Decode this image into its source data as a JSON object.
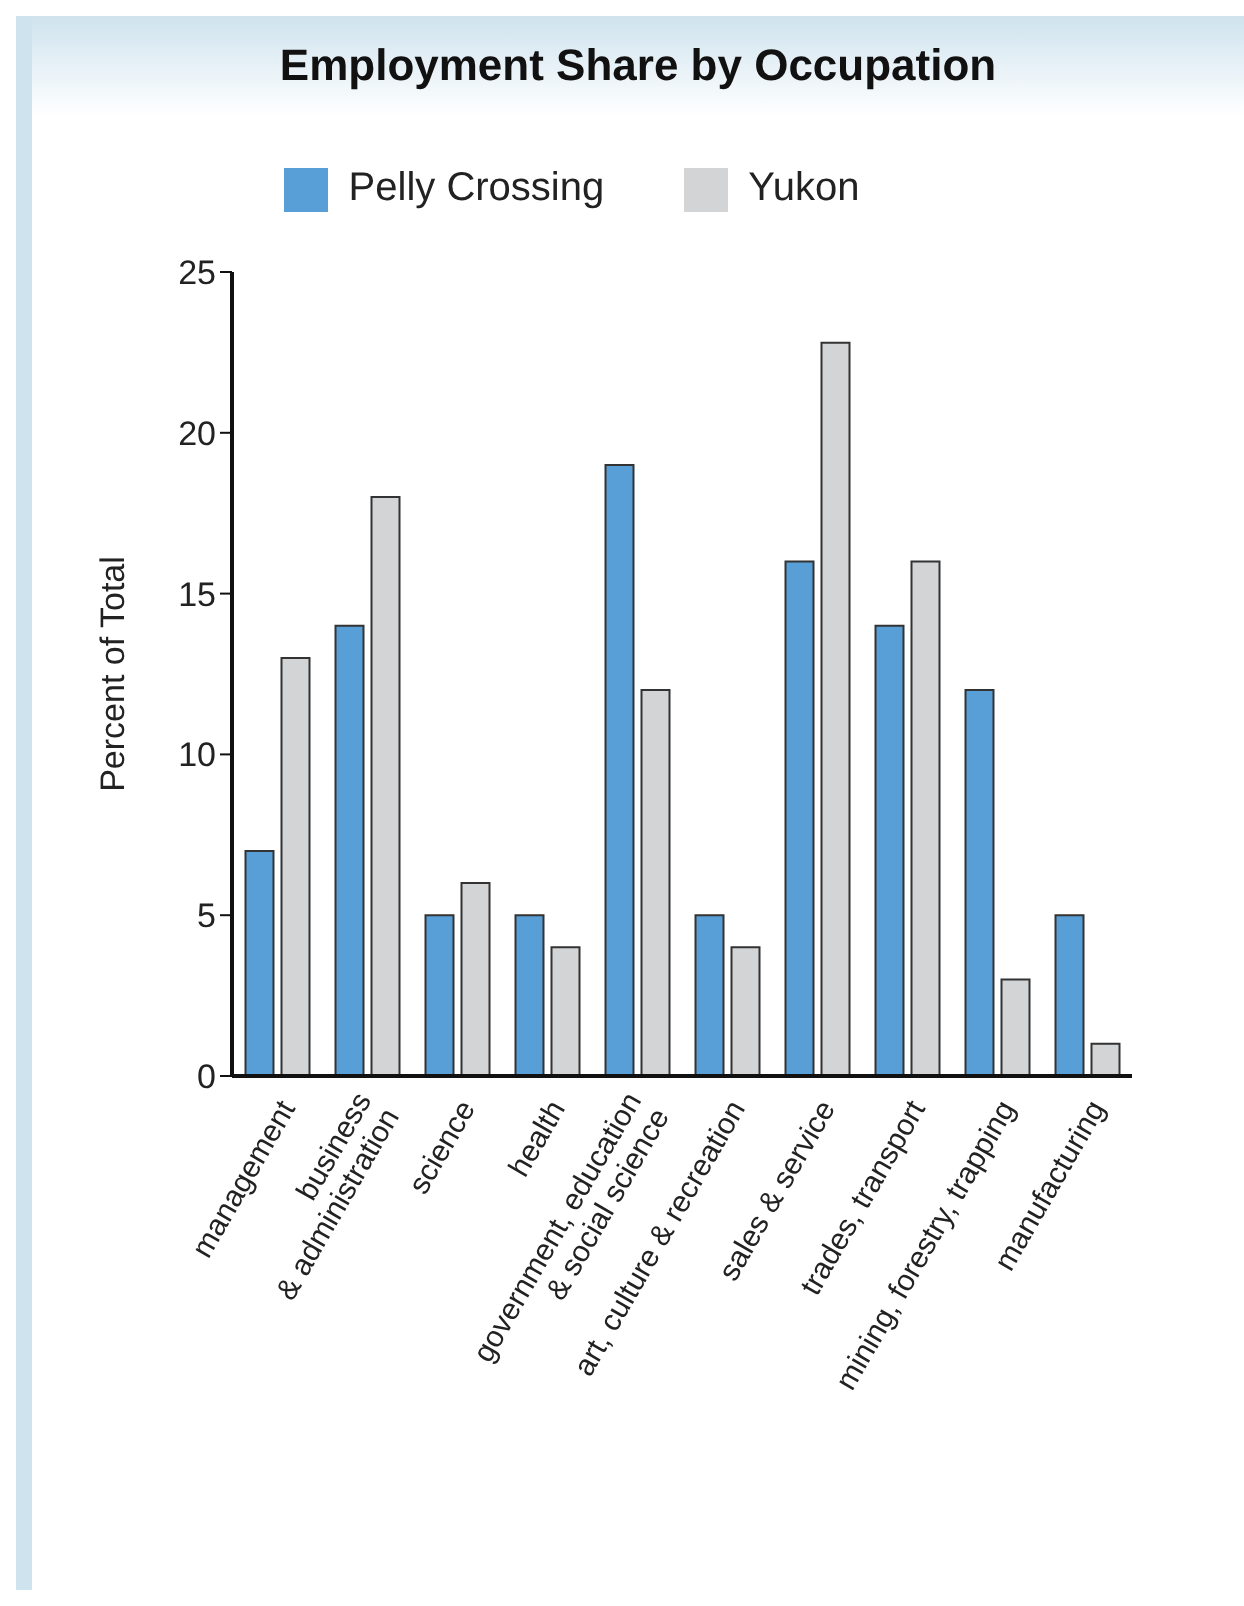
{
  "chart_data": {
    "type": "bar",
    "title": "Employment Share by Occupation",
    "ylabel": "Percent of Total",
    "categories": [
      "management",
      "business\n& administration",
      "science",
      "health",
      "government, education\n& social science",
      "art, culture & recreation",
      "sales & service",
      "trades, transport",
      "mining, forestry, trapping",
      "manufacturing"
    ],
    "series": [
      {
        "name": "Pelly Crossing",
        "color": "#579fd6",
        "values": [
          7,
          14,
          5,
          5,
          19,
          5,
          16,
          14,
          12,
          5
        ]
      },
      {
        "name": "Yukon",
        "color": "#d3d4d6",
        "values": [
          13,
          18,
          6,
          4,
          12,
          4,
          22.8,
          16,
          3,
          1
        ]
      }
    ],
    "ylim": [
      0,
      25
    ],
    "yticks": [
      0,
      5,
      10,
      15,
      20,
      25
    ],
    "grid": false,
    "legend": "top"
  }
}
